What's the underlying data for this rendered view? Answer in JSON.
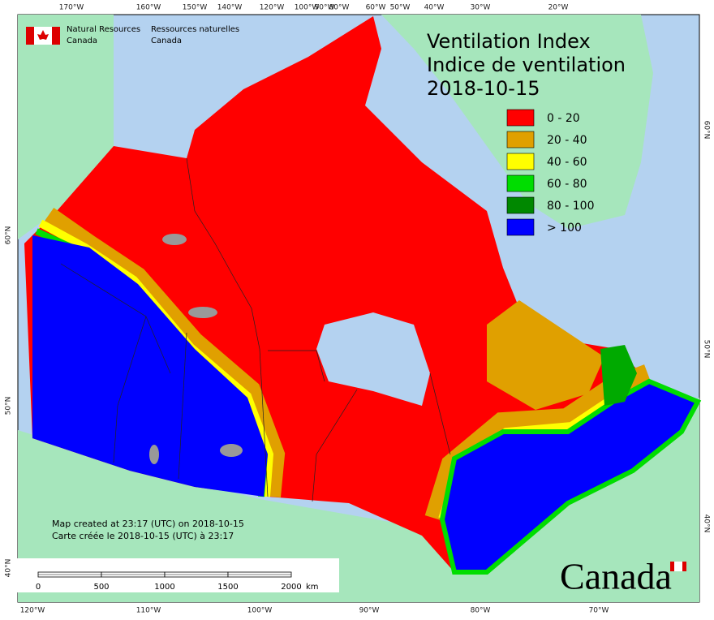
{
  "header": {
    "org_en": [
      "Natural Resources",
      "Canada"
    ],
    "org_fr": [
      "Ressources naturelles",
      "Canada"
    ]
  },
  "title": {
    "line1": "Ventilation Index",
    "line2": "Indice de ventilation",
    "date": "2018-10-15"
  },
  "legend": [
    {
      "label": "0 - 20",
      "color": "#ff0000"
    },
    {
      "label": "20 - 40",
      "color": "#e0a000"
    },
    {
      "label": "40 - 60",
      "color": "#ffff00"
    },
    {
      "label": "60 - 80",
      "color": "#00dd00"
    },
    {
      "label": "80 - 100",
      "color": "#008800"
    },
    {
      "label": "> 100",
      "color": "#0000ff"
    }
  ],
  "notes": [
    "Map created at 23:17 (UTC) on 2018-10-15",
    "Carte créée le 2018-10-15 (UTC) à 23:17"
  ],
  "scale_bar": {
    "labels": [
      "0",
      "500",
      "1000",
      "1500",
      "2000"
    ],
    "unit": "km"
  },
  "graticule": {
    "top": [
      "170°W",
      "160°W",
      "150°W",
      "140°W",
      "120°W",
      "100°W",
      "90°W",
      "80°W",
      "60°W",
      "50°W",
      "40°W",
      "30°W",
      "20°W"
    ],
    "bottom": [
      "120°W",
      "110°W",
      "100°W",
      "90°W",
      "80°W",
      "70°W"
    ],
    "left": [
      "60°N",
      "50°N",
      "40°N"
    ],
    "right": [
      "60°N",
      "50°N",
      "40°N"
    ]
  },
  "wordmark": "Canada"
}
